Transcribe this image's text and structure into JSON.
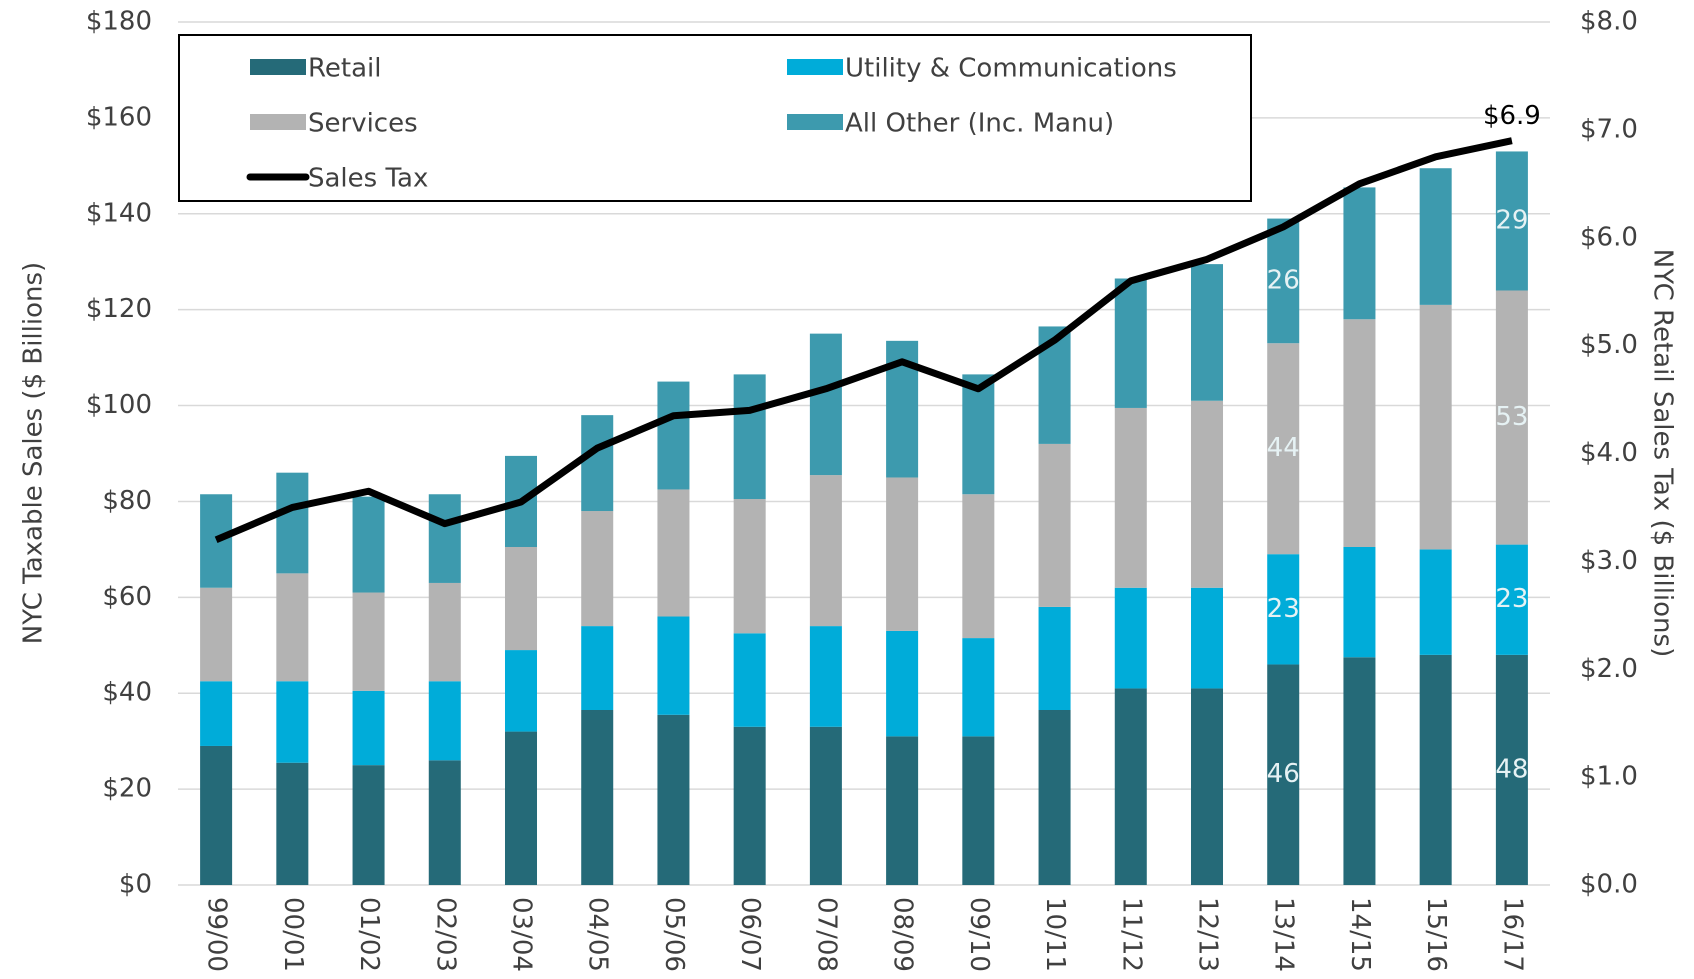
{
  "chart_data": {
    "type": "bar",
    "categories": [
      "99/00",
      "00/01",
      "01/02",
      "02/03",
      "03/04",
      "04/05",
      "05/06",
      "06/07",
      "07/08",
      "08/09",
      "09/10",
      "10/11",
      "11/12",
      "12/13",
      "13/14",
      "14/15",
      "15/16",
      "16/17"
    ],
    "ylabel": "NYC Taxable Sales ($ Billions)",
    "y2label": "NYC Retail Sales Tax ($ Billions)",
    "ylim": [
      0,
      180
    ],
    "yticks": [
      {
        "value": 0,
        "label": "$0"
      },
      {
        "value": 20,
        "label": "$20"
      },
      {
        "value": 40,
        "label": "$40"
      },
      {
        "value": 60,
        "label": "$60"
      },
      {
        "value": 80,
        "label": "$80"
      },
      {
        "value": 100,
        "label": "$100"
      },
      {
        "value": 120,
        "label": "$120"
      },
      {
        "value": 140,
        "label": "$140"
      },
      {
        "value": 160,
        "label": "$160"
      },
      {
        "value": 180,
        "label": "$180"
      }
    ],
    "y2lim": [
      0,
      8
    ],
    "y2ticks": [
      {
        "value": 0,
        "label": "$0.0"
      },
      {
        "value": 1,
        "label": "$1.0"
      },
      {
        "value": 2,
        "label": "$2.0"
      },
      {
        "value": 3,
        "label": "$3.0"
      },
      {
        "value": 4,
        "label": "$4.0"
      },
      {
        "value": 5,
        "label": "$5.0"
      },
      {
        "value": 6,
        "label": "$6.0"
      },
      {
        "value": 7,
        "label": "$7.0"
      },
      {
        "value": 8,
        "label": "$8.0"
      }
    ],
    "grid": true,
    "stacked": true,
    "series": [
      {
        "name": "Retail",
        "color": "#256a78",
        "values": [
          29,
          25.5,
          25,
          26,
          32,
          36.5,
          35.5,
          33,
          33,
          31,
          31,
          36.5,
          41,
          41,
          46,
          47.5,
          48,
          48
        ],
        "value_labels": [
          null,
          null,
          null,
          null,
          null,
          null,
          null,
          null,
          null,
          null,
          null,
          null,
          null,
          null,
          "46",
          null,
          null,
          "48"
        ]
      },
      {
        "name": "Utility & Communications",
        "color": "#00acd9",
        "values": [
          13.5,
          17,
          15.5,
          16.5,
          17,
          17.5,
          20.5,
          19.5,
          21,
          22,
          20.5,
          21.5,
          21,
          21,
          23,
          23,
          22,
          23
        ],
        "value_labels": [
          null,
          null,
          null,
          null,
          null,
          null,
          null,
          null,
          null,
          null,
          null,
          null,
          null,
          null,
          "23",
          null,
          null,
          "23"
        ]
      },
      {
        "name": "Services",
        "color": "#b3b3b3",
        "values": [
          19.5,
          22.5,
          20.5,
          20.5,
          21.5,
          24,
          26.5,
          28,
          31.5,
          32,
          30,
          34,
          37.5,
          39,
          44,
          47.5,
          51,
          53
        ],
        "value_labels": [
          null,
          null,
          null,
          null,
          null,
          null,
          null,
          null,
          null,
          null,
          null,
          null,
          null,
          null,
          "44",
          null,
          null,
          "53"
        ]
      },
      {
        "name": "All Other (Inc. Manu)",
        "color": "#3d9aae",
        "values": [
          19.5,
          21,
          20,
          18.5,
          19,
          20,
          22.5,
          26,
          29.5,
          28.5,
          25,
          24.5,
          27,
          28.5,
          26,
          27.5,
          28.5,
          29
        ],
        "value_labels": [
          null,
          null,
          null,
          null,
          null,
          null,
          null,
          null,
          null,
          null,
          null,
          null,
          null,
          null,
          "26",
          null,
          null,
          "29"
        ]
      },
      {
        "name": "Sales Tax",
        "type": "line",
        "axis": "y2",
        "color": "#000000",
        "values": [
          3.2,
          3.5,
          3.65,
          3.35,
          3.55,
          4.05,
          4.35,
          4.4,
          4.6,
          4.85,
          4.6,
          5.05,
          5.6,
          5.8,
          6.1,
          6.5,
          6.75,
          6.9
        ],
        "value_labels": [
          null,
          null,
          null,
          null,
          null,
          null,
          null,
          null,
          null,
          null,
          null,
          null,
          null,
          null,
          null,
          null,
          null,
          "$6.9"
        ]
      }
    ]
  }
}
